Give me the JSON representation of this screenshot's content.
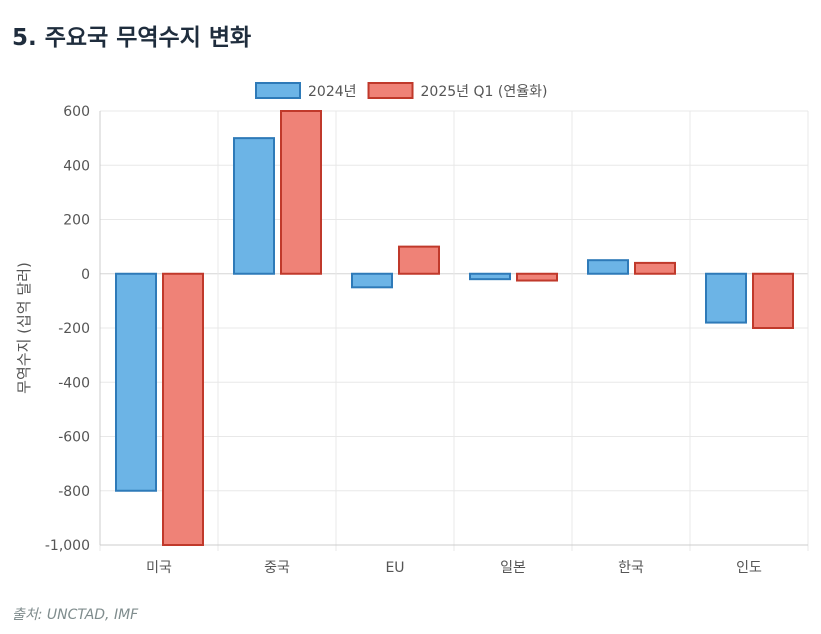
{
  "title": "5. 주요국 무역수지 변화",
  "source": "출처: UNCTAD, IMF",
  "chart_data": {
    "type": "bar",
    "title": "",
    "xlabel": "",
    "ylabel": "무역수지 (십억 달러)",
    "categories": [
      "미국",
      "중국",
      "EU",
      "일본",
      "한국",
      "인도"
    ],
    "series": [
      {
        "name": "2024년",
        "values": [
          -800,
          500,
          -50,
          -20,
          50,
          -180
        ],
        "color": "#6cb4e6",
        "border": "#2e7ab8"
      },
      {
        "name": "2025년 Q1 (연율화)",
        "values": [
          -1000,
          600,
          100,
          -25,
          40,
          -200
        ],
        "color": "#ef8277",
        "border": "#c0392b"
      }
    ],
    "ylim": [
      -1000,
      600
    ],
    "yticks": [
      600,
      400,
      200,
      0,
      -200,
      -400,
      -600,
      -800,
      -1000
    ],
    "ytick_labels": [
      "600",
      "400",
      "200",
      "0",
      "-200",
      "-400",
      "-600",
      "-800",
      "-1,000"
    ],
    "grid": true,
    "legend": "top"
  }
}
